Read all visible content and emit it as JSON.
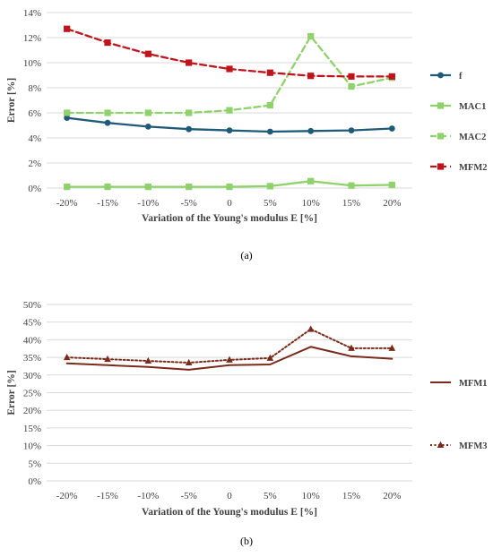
{
  "chart_data": [
    {
      "type": "line",
      "caption": "(a)",
      "categories": [
        "-20%",
        "-15%",
        "-10%",
        "-5%",
        "0",
        "5%",
        "10%",
        "15%",
        "20%"
      ],
      "xlabel": "Variation of the Young's modulus E [%]",
      "ylabel": "Error [%]",
      "ylim": [
        0,
        14
      ],
      "yticks": [
        "0%",
        "2%",
        "4%",
        "6%",
        "8%",
        "10%",
        "12%",
        "14%"
      ],
      "grid": true,
      "legend_position": "right",
      "series": [
        {
          "name": "f",
          "color": "#1f5a7a",
          "marker": "circle",
          "dash": "solid",
          "values": [
            5.6,
            5.2,
            4.9,
            4.7,
            4.6,
            4.5,
            4.55,
            4.6,
            4.75
          ]
        },
        {
          "name": "MAC1",
          "color": "#8fd16a",
          "marker": "square",
          "dash": "solid",
          "values": [
            0.1,
            0.1,
            0.1,
            0.1,
            0.1,
            0.15,
            0.55,
            0.2,
            0.25
          ]
        },
        {
          "name": "MAC2",
          "color": "#8fd16a",
          "marker": "square",
          "dash": "dashed",
          "values": [
            6.0,
            6.0,
            6.0,
            6.0,
            6.2,
            6.6,
            12.1,
            8.1,
            8.8
          ]
        },
        {
          "name": "MFM2",
          "color": "#c0141c",
          "marker": "square",
          "dash": "dashed",
          "values": [
            12.7,
            11.6,
            10.7,
            10.0,
            9.5,
            9.2,
            8.95,
            8.9,
            8.9
          ]
        }
      ]
    },
    {
      "type": "line",
      "caption": "(b)",
      "categories": [
        "-20%",
        "-15%",
        "-10%",
        "-5%",
        "0",
        "5%",
        "10%",
        "15%",
        "20%"
      ],
      "xlabel": "Variation of the Young's modulus E [%]",
      "ylabel": "Error [%]",
      "ylim": [
        0,
        50
      ],
      "yticks": [
        "0%",
        "5%",
        "10%",
        "15%",
        "20%",
        "25%",
        "30%",
        "35%",
        "40%",
        "45%",
        "50%"
      ],
      "grid": true,
      "legend_position": "right",
      "series": [
        {
          "name": "MFM1",
          "color": "#7a2a1a",
          "marker": "none",
          "dash": "solid",
          "values": [
            33.3,
            32.8,
            32.3,
            31.5,
            32.8,
            33.0,
            38.0,
            35.3,
            34.6
          ]
        },
        {
          "name": "MFM3",
          "color": "#7a2a1a",
          "marker": "triangle",
          "dash": "dotted",
          "values": [
            35.0,
            34.5,
            34.0,
            33.5,
            34.3,
            34.8,
            43.0,
            37.6,
            37.6
          ]
        }
      ]
    }
  ]
}
